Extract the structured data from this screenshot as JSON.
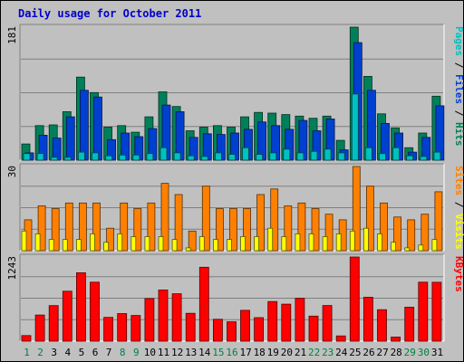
{
  "chart_data": {
    "type": "bar",
    "title": "Daily usage for October 2011",
    "categories": [
      "1",
      "2",
      "3",
      "4",
      "5",
      "6",
      "7",
      "8",
      "9",
      "10",
      "11",
      "12",
      "13",
      "14",
      "15",
      "16",
      "17",
      "18",
      "19",
      "20",
      "21",
      "22",
      "23",
      "24",
      "25",
      "26",
      "27",
      "28",
      "29",
      "30",
      "31"
    ],
    "weekend_days": [
      "1",
      "2",
      "8",
      "9",
      "15",
      "16",
      "22",
      "23",
      "29",
      "30"
    ],
    "panels": [
      {
        "id": "requests",
        "ymax_label": "181",
        "ylim": [
          0,
          181
        ],
        "legend": [
          {
            "text": "Pages",
            "color": "#00c0c0"
          },
          {
            "text": "Files",
            "color": "#0040d0"
          },
          {
            "text": "Hits",
            "color": "#00805a"
          }
        ],
        "series": [
          {
            "name": "Hits",
            "color": "#00805a",
            "values": [
              22,
              47,
              48,
              66,
              113,
              92,
              45,
              47,
              38,
              59,
              93,
              73,
              40,
              45,
              47,
              45,
              59,
              65,
              64,
              62,
              60,
              57,
              60,
              27,
              181,
              114,
              63,
              44,
              17,
              37,
              87
            ]
          },
          {
            "name": "Files",
            "color": "#0040d0",
            "values": [
              10,
              34,
              30,
              59,
              95,
              86,
              28,
              37,
              32,
              43,
              75,
              66,
              31,
              36,
              35,
              37,
              42,
              52,
              47,
              42,
              54,
              40,
              56,
              14,
              160,
              95,
              50,
              37,
              11,
              31,
              74
            ]
          },
          {
            "name": "Pages",
            "color": "#00c0c0",
            "values": [
              9,
              9,
              4,
              4,
              11,
              10,
              6,
              7,
              7,
              9,
              17,
              10,
              6,
              5,
              10,
              8,
              17,
              8,
              10,
              15,
              10,
              12,
              15,
              10,
              90,
              17,
              9,
              17,
              6,
              5,
              11
            ]
          }
        ]
      },
      {
        "id": "visitors",
        "ymax_label": "30",
        "ylim": [
          0,
          30
        ],
        "legend": [
          {
            "text": "Sites",
            "color": "#ff8000"
          },
          {
            "text": "Visits",
            "color": "#ffff00"
          }
        ],
        "series": [
          {
            "name": "Sites",
            "color": "#ff8000",
            "values": [
              11,
              16,
              15,
              17,
              17,
              17,
              8,
              17,
              15,
              17,
              24,
              20,
              7,
              23,
              15,
              15,
              15,
              20,
              22,
              16,
              17,
              15,
              13,
              11,
              30,
              23,
              17,
              12,
              11,
              13,
              21
            ]
          },
          {
            "name": "Visits",
            "color": "#ffff00",
            "values": [
              7,
              6,
              4,
              4,
              4,
              6,
              3,
              6,
              5,
              5,
              5,
              4,
              1,
              5,
              4,
              4,
              5,
              5,
              8,
              5,
              6,
              6,
              5,
              6,
              7,
              8,
              6,
              3,
              1,
              2,
              4
            ]
          }
        ]
      },
      {
        "id": "kbytes",
        "ymax_label": "1243",
        "ylim": [
          0,
          1243
        ],
        "legend": [
          {
            "text": "KBytes",
            "color": "#ff0000"
          }
        ],
        "series": [
          {
            "name": "KBytes",
            "color": "#ff0000",
            "values": [
              83,
              386,
              525,
              738,
              1011,
              871,
              352,
              408,
              380,
              630,
              756,
              700,
              412,
              1092,
              324,
              286,
              456,
              347,
              586,
              547,
              633,
              370,
              527,
              78,
              1243,
              650,
              465,
              62,
              503,
              872,
              870
            ]
          }
        ]
      }
    ]
  }
}
